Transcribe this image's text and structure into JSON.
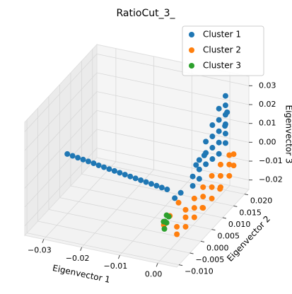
{
  "chart_data": {
    "type": "scatter3d",
    "title": "RatioCut_3_",
    "x_label": "Eigenvector 1",
    "y_label": "Eigenvector 2",
    "z_label": "Eigenvector 3",
    "xlim": [
      -0.035,
      0.005
    ],
    "ylim": [
      -0.011,
      0.022
    ],
    "zlim": [
      -0.025,
      0.035
    ],
    "xticks": [
      {
        "value": -0.03,
        "label": "−0.03"
      },
      {
        "value": -0.02,
        "label": "−0.02"
      },
      {
        "value": -0.01,
        "label": "−0.01"
      },
      {
        "value": 0,
        "label": "0.00"
      }
    ],
    "yticks": [
      {
        "value": -0.01,
        "label": "−0.010"
      },
      {
        "value": -0.005,
        "label": "−0.005"
      },
      {
        "value": 0,
        "label": "0.000"
      },
      {
        "value": 0.005,
        "label": "0.005"
      },
      {
        "value": 0.01,
        "label": "0.010"
      },
      {
        "value": 0.015,
        "label": "0.015"
      },
      {
        "value": 0.02,
        "label": "0.020"
      }
    ],
    "zticks": [
      {
        "value": -0.02,
        "label": "−0.02"
      },
      {
        "value": -0.01,
        "label": "−0.01"
      },
      {
        "value": 0,
        "label": "0.00"
      },
      {
        "value": 0.01,
        "label": "0.01"
      },
      {
        "value": 0.02,
        "label": "0.02"
      },
      {
        "value": 0.03,
        "label": "0.03"
      }
    ],
    "grid": true,
    "legend": "upper right",
    "series": [
      {
        "name": "Cluster 1",
        "color": "#1f77b4",
        "x": [
          -0.033,
          -0.0315,
          -0.03,
          -0.0285,
          -0.027,
          -0.0255,
          -0.024,
          -0.0225,
          -0.021,
          -0.0195,
          -0.018,
          -0.0165,
          -0.015,
          -0.0135,
          -0.012,
          -0.0105,
          -0.009,
          -0.0075,
          -0.006,
          -0.0045,
          0,
          0,
          0,
          0,
          0,
          0,
          0,
          0,
          0,
          0,
          0,
          0,
          0,
          0,
          0,
          0,
          0,
          0,
          0,
          0,
          0,
          0,
          0,
          -0.002,
          -0.003,
          -0.001,
          -0.002,
          0.001,
          0.001
        ],
        "y": [
          0.005,
          0.0048,
          0.0046,
          0.0044,
          0.0042,
          0.004,
          0.0037,
          0.0035,
          0.0033,
          0.0031,
          0.0029,
          0.0027,
          0.0025,
          0.0023,
          0.0021,
          0.0019,
          0.0017,
          0.0015,
          0.0013,
          0.0011,
          0.02,
          0.02,
          0.02,
          0.02,
          0.02,
          0.02,
          0.017,
          0.017,
          0.017,
          0.017,
          0.017,
          0.014,
          0.014,
          0.014,
          0.014,
          0.011,
          0.011,
          0.011,
          0.008,
          0.008,
          0.008,
          0.005,
          0.005,
          0.003,
          0.002,
          0.012,
          0.01,
          0.019,
          0.018
        ],
        "z": [
          -0.001,
          -0.0011,
          -0.0012,
          -0.0013,
          -0.0014,
          -0.0015,
          -0.0016,
          -0.0017,
          -0.0018,
          -0.0019,
          -0.002,
          -0.0021,
          -0.0022,
          -0.0023,
          -0.0024,
          -0.0025,
          -0.0026,
          -0.0027,
          -0.0028,
          -0.0029,
          0.025,
          0.02,
          0.015,
          0.01,
          0.005,
          0,
          0.022,
          0.016,
          0.01,
          0.004,
          -0.002,
          0.017,
          0.011,
          0.005,
          -0.001,
          0.012,
          0.006,
          0,
          0.006,
          0.001,
          -0.004,
          0.001,
          -0.004,
          -0.006,
          -0.008,
          0.003,
          0,
          0.018,
          0.012
        ]
      },
      {
        "name": "Cluster 2",
        "color": "#ff7f0e",
        "x": [
          0.001,
          0.001,
          0.001,
          0.001,
          0.001,
          0.001,
          0.001,
          0.001,
          0.001,
          0.001,
          0.001,
          0.001,
          0.001,
          0.001,
          0.001,
          0.001,
          0.001,
          0.001,
          0.001,
          0.001,
          0.001,
          0.001,
          -0.002,
          -0.002,
          -0.003,
          0.002,
          0.002
        ],
        "y": [
          -0.004,
          -0.004,
          0,
          0,
          0,
          0.004,
          0.004,
          0.004,
          0.008,
          0.008,
          0.008,
          0.012,
          0.012,
          0.012,
          0.016,
          0.016,
          0.016,
          0.02,
          0.02,
          0.02,
          0.022,
          0.022,
          -0.002,
          0.002,
          -0.003,
          0.006,
          0.014
        ],
        "z": [
          -0.018,
          -0.014,
          -0.019,
          -0.014,
          -0.01,
          -0.019,
          -0.014,
          -0.009,
          -0.019,
          -0.013,
          -0.008,
          -0.019,
          -0.013,
          -0.007,
          -0.018,
          -0.012,
          -0.006,
          -0.017,
          -0.011,
          -0.006,
          -0.014,
          -0.008,
          -0.012,
          -0.01,
          -0.016,
          -0.016,
          -0.016
        ]
      },
      {
        "name": "Cluster 3",
        "color": "#2ca02c",
        "x": [
          -0.004,
          -0.004,
          -0.004,
          -0.004,
          -0.005,
          -0.0045
        ],
        "y": [
          0.001,
          0,
          -0.001,
          0,
          0.001,
          -0.0005
        ],
        "z": [
          -0.017,
          -0.019,
          -0.021,
          -0.015,
          -0.02,
          -0.018
        ]
      }
    ]
  }
}
